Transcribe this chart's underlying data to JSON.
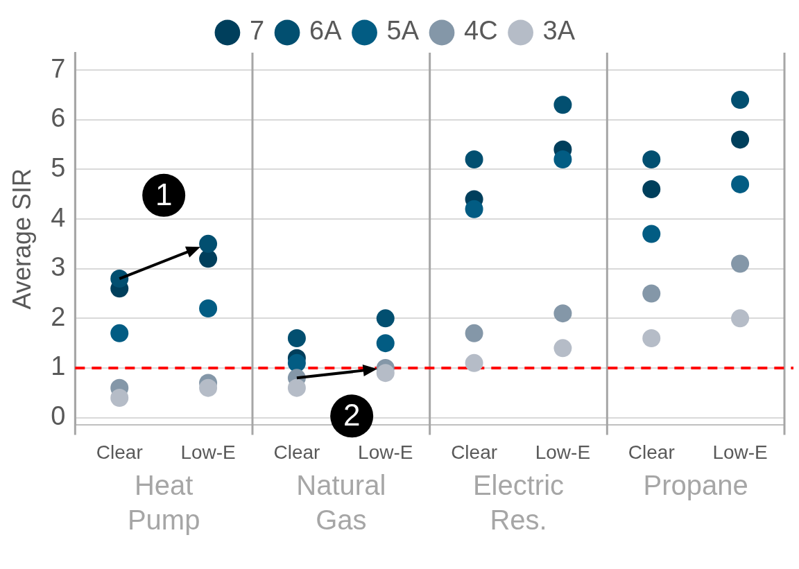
{
  "chart_data": {
    "type": "scatter",
    "ylabel": "Average SIR",
    "categories": [
      "Clear",
      "Low-E",
      "Clear",
      "Low-E",
      "Clear",
      "Low-E",
      "Clear",
      "Low-E"
    ],
    "series": [
      {
        "name": "7",
        "color": "#003f5c",
        "values": [
          2.6,
          3.2,
          1.2,
          null,
          4.4,
          5.4,
          4.6,
          5.6
        ]
      },
      {
        "name": "6A",
        "color": "#024f70",
        "values": [
          2.8,
          3.5,
          1.6,
          2.0,
          5.2,
          6.3,
          5.2,
          6.4
        ]
      },
      {
        "name": "5A",
        "color": "#025c83",
        "values": [
          1.7,
          2.2,
          1.1,
          1.5,
          4.2,
          5.2,
          3.7,
          4.7
        ]
      },
      {
        "name": "4C",
        "color": "#8497a8",
        "values": [
          0.6,
          0.7,
          0.8,
          1.0,
          1.7,
          2.1,
          2.5,
          3.1
        ]
      },
      {
        "name": "3A",
        "color": "#b5bcc7",
        "values": [
          0.4,
          0.6,
          0.6,
          0.9,
          1.1,
          1.4,
          1.6,
          2.0
        ]
      }
    ],
    "ylim": [
      -0.15,
      7.35
    ],
    "yticks": [
      0,
      1,
      2,
      3,
      4,
      5,
      6,
      7
    ],
    "grid": "y",
    "legend": "top",
    "marker": "circle",
    "ref_lines": [
      {
        "axis": "y",
        "value": 1,
        "color": "#ff0000",
        "line_style": "dashed"
      }
    ],
    "annotations": [
      "Heat Pump",
      "Natural Gas",
      "Electric Res.",
      "Propane",
      "1",
      {
        "text": "2",
        "y": 1.0
      }
    ]
  }
}
